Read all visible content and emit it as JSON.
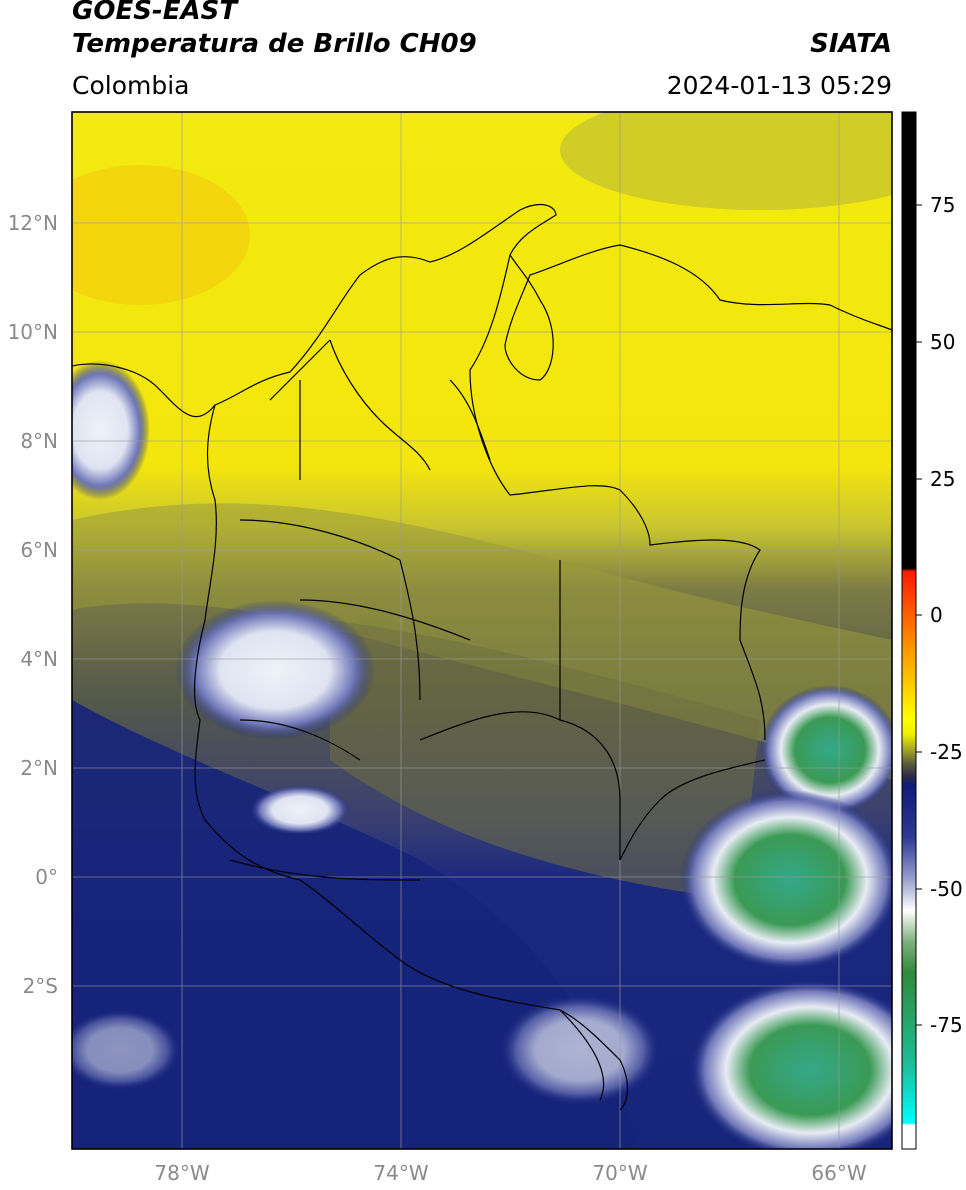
{
  "header": {
    "satellite": "GOES-EAST",
    "product": "Temperatura de Brillo CH09",
    "brand": "SIATA",
    "region": "Colombia",
    "timestamp": "2024-01-13 05:29"
  },
  "axes": {
    "lat_labels": [
      "12°N",
      "10°N",
      "8°N",
      "6°N",
      "4°N",
      "2°N",
      "0°",
      "2°S"
    ],
    "lon_labels": [
      "78°W",
      "74°W",
      "70°W",
      "66°W"
    ]
  },
  "colorbar": {
    "tick_labels": [
      "75",
      "50",
      "25",
      "0",
      "-25",
      "-50",
      "-75"
    ],
    "units": "",
    "colors": {
      "hot": "#000000",
      "red": "#ff2a00",
      "orange": "#ff9900",
      "yellow": "#ffff00",
      "olive": "#8a8a3a",
      "dark_gray": "#3d3d4a",
      "navy": "#0f1a7a",
      "white": "#ffffff",
      "green": "#2f8a3a",
      "teal": "#1bbf9a",
      "cyan": "#00ffff"
    }
  },
  "map_colors": {
    "clear_yellow": "#f6ee10",
    "warm_orange": "#f4c60f",
    "olive_haze": "#b7b53a",
    "gray_olive": "#6f7040",
    "navy_cloud": "#1b2a80",
    "cold_white": "#e8ecf4",
    "cold_green": "#3c9c52",
    "coastline": "#000000",
    "grid": "#9a9a9a"
  }
}
